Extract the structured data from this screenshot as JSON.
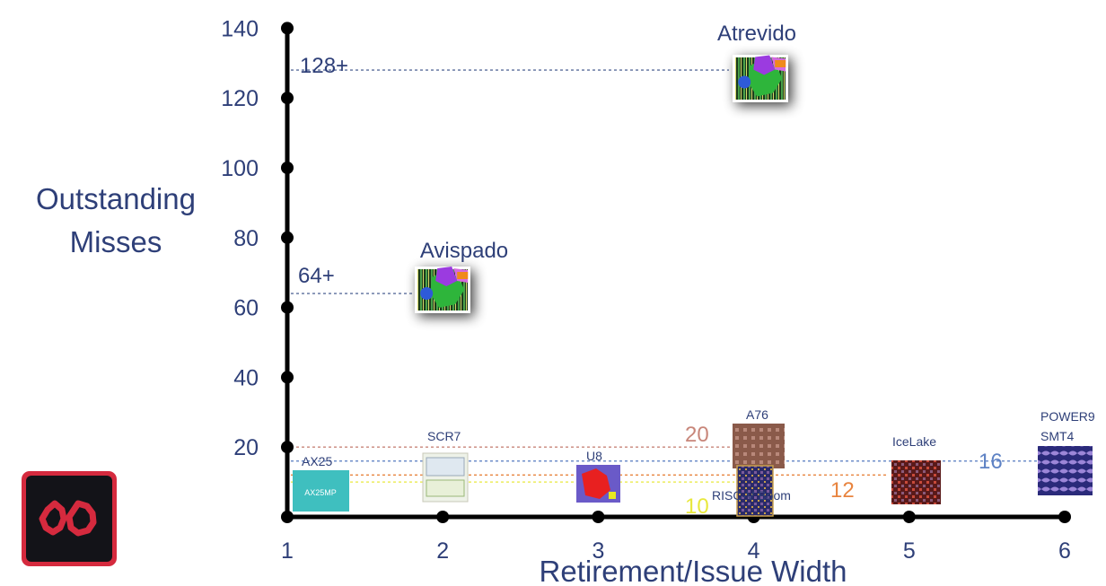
{
  "chart_data": {
    "type": "scatter",
    "xlabel": "Retirement/Issue Width",
    "ylabel_lines": [
      "Outstanding",
      "Misses"
    ],
    "xlim": [
      1,
      6
    ],
    "ylim": [
      0,
      140
    ],
    "x_ticks": [
      1,
      2,
      3,
      4,
      5,
      6
    ],
    "y_ticks": [
      20,
      40,
      60,
      80,
      100,
      120,
      140
    ],
    "grid": false,
    "points": [
      {
        "label": "Atrevido",
        "x": 4,
        "y": 128,
        "value_label": "128+",
        "line_color": "#5b6e9c",
        "highlight": true
      },
      {
        "label": "Avispado",
        "x": 2,
        "y": 64,
        "value_label": "64+",
        "line_color": "#5b6e9c",
        "highlight": true
      },
      {
        "label": "A76",
        "x": 4,
        "y": 20,
        "value_label": "20",
        "line_color": "#c8867a"
      },
      {
        "label": "POWER9 SMT4",
        "x": 6,
        "y": 16,
        "value_label": "16",
        "line_color": "#6a8ac7"
      },
      {
        "label": "IceLake",
        "x": 5,
        "y": 12,
        "value_label": "12",
        "line_color": "#e8843f"
      },
      {
        "label": "RISC-V Boom",
        "x": 4,
        "y": 10,
        "value_label": "10",
        "line_color": "#e8e83c"
      },
      {
        "label": "AX25",
        "x": 1,
        "y": 8
      },
      {
        "label": "SCR7",
        "x": 2,
        "y": 8
      },
      {
        "label": "U8",
        "x": 3,
        "y": 8
      }
    ],
    "colors": {
      "axis": "#000000",
      "text": "#2e3f78",
      "label_20": "#c8867a",
      "label_16": "#5e82c4",
      "label_12": "#e8843f",
      "label_10": "#e8e83c"
    }
  },
  "labels": {
    "chip_ax25_text": "AX25MP"
  },
  "logo_icon": "semidynamics-logo-icon"
}
